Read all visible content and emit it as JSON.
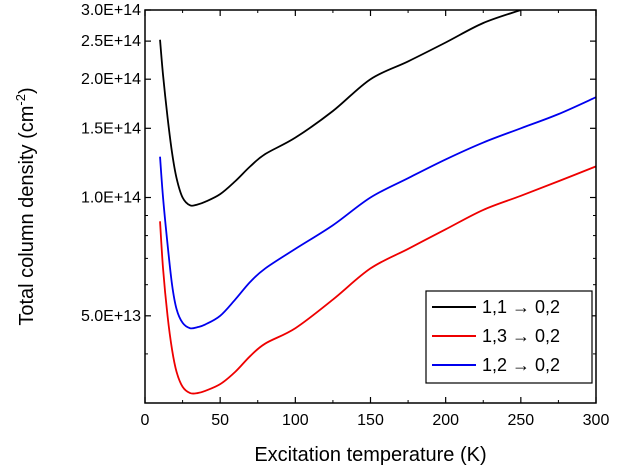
{
  "chart_data": {
    "type": "line",
    "title": "",
    "xlabel": "Excitation temperature (K)",
    "ylabel": {
      "prefix": "Total column density (cm",
      "superscript": "-2",
      "suffix": ")"
    },
    "xlim": [
      0,
      300
    ],
    "ylim": [
      30000000000000.0,
      300000000000000.0
    ],
    "yscale": "log",
    "grid": false,
    "legend_position": "bottom-right",
    "x_ticks": [
      {
        "value": 0,
        "label": "0"
      },
      {
        "value": 50,
        "label": "50"
      },
      {
        "value": 100,
        "label": "100"
      },
      {
        "value": 150,
        "label": "150"
      },
      {
        "value": 200,
        "label": "200"
      },
      {
        "value": 250,
        "label": "250"
      },
      {
        "value": 300,
        "label": "300"
      }
    ],
    "y_ticks": [
      {
        "value": 50000000000000.0,
        "label": "5.0E+13"
      },
      {
        "value": 100000000000000.0,
        "label": "1.0E+14"
      },
      {
        "value": 150000000000000.0,
        "label": "1.5E+14"
      },
      {
        "value": 200000000000000.0,
        "label": "2.0E+14"
      },
      {
        "value": 250000000000000.0,
        "label": "2.5E+14"
      },
      {
        "value": 300000000000000.0,
        "label": "3.0E+14"
      }
    ],
    "series": [
      {
        "name": "1,1 → 0,2",
        "color": "#000000",
        "x": [
          10,
          12,
          15,
          18,
          21,
          25,
          30,
          35,
          40,
          50,
          60,
          70,
          80,
          100,
          125,
          150,
          175,
          200,
          225,
          250
        ],
        "y": [
          252000000000000.0,
          205000000000000.0,
          160000000000000.0,
          130000000000000.0,
          112000000000000.0,
          100000000000000.0,
          95500000000000.0,
          96000000000000.0,
          97500000000000.0,
          102000000000000.0,
          110000000000000.0,
          120000000000000.0,
          129000000000000.0,
          142000000000000.0,
          166000000000000.0,
          200000000000000.0,
          222000000000000.0,
          248000000000000.0,
          278000000000000.0,
          300000000000000.0
        ]
      },
      {
        "name": "1,3 → 0,2",
        "color": "#ee0000",
        "x": [
          10,
          12,
          15,
          18,
          21,
          25,
          30,
          35,
          40,
          50,
          60,
          70,
          80,
          100,
          125,
          150,
          175,
          200,
          225,
          250,
          275,
          300
        ],
        "y": [
          87000000000000.0,
          66000000000000.0,
          50000000000000.0,
          41000000000000.0,
          36000000000000.0,
          33000000000000.0,
          31800000000000.0,
          31800000000000.0,
          32200000000000.0,
          33500000000000.0,
          36000000000000.0,
          39500000000000.0,
          42500000000000.0,
          46500000000000.0,
          55000000000000.0,
          66000000000000.0,
          74000000000000.0,
          83000000000000.0,
          93000000000000.0,
          101000000000000.0,
          110000000000000.0,
          120000000000000.0
        ]
      },
      {
        "name": "1,2 → 0,2",
        "color": "#0000ee",
        "x": [
          10,
          12,
          15,
          18,
          21,
          25,
          30,
          35,
          40,
          50,
          60,
          70,
          80,
          100,
          125,
          150,
          175,
          200,
          225,
          250,
          275,
          300
        ],
        "y": [
          127000000000000.0,
          100000000000000.0,
          76000000000000.0,
          60000000000000.0,
          52000000000000.0,
          48000000000000.0,
          46500000000000.0,
          46800000000000.0,
          47500000000000.0,
          50000000000000.0,
          55000000000000.0,
          61000000000000.0,
          66000000000000.0,
          74000000000000.0,
          85000000000000.0,
          100000000000000.0,
          112000000000000.0,
          125000000000000.0,
          138000000000000.0,
          150000000000000.0,
          163000000000000.0,
          180000000000000.0
        ]
      }
    ]
  }
}
